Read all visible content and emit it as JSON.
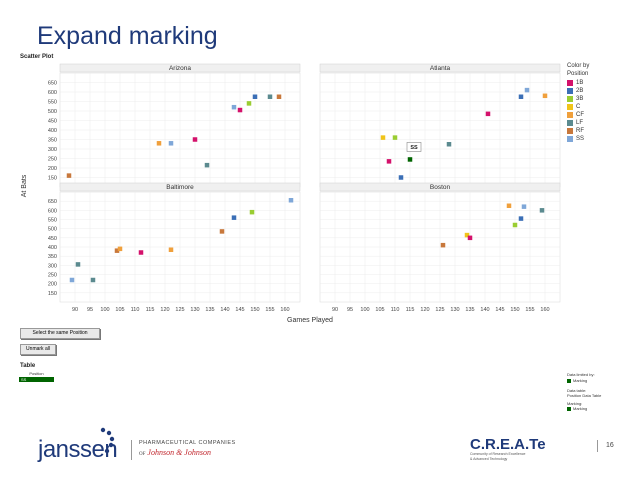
{
  "slide": {
    "title": "Expand marking",
    "page_number": "16"
  },
  "chart_data": {
    "type": "scatter",
    "title": "Scatter Plot",
    "xlabel": "Games Played",
    "ylabel": "At Bats",
    "xlim": [
      85,
      165
    ],
    "ylim": [
      100,
      700
    ],
    "xticks": [
      90,
      95,
      100,
      105,
      110,
      115,
      120,
      125,
      130,
      135,
      140,
      145,
      150,
      155,
      160
    ],
    "yticks": [
      150,
      200,
      250,
      300,
      350,
      400,
      450,
      500,
      550,
      600,
      650
    ],
    "legend": {
      "title": "Color by Position",
      "placement": "right",
      "items": [
        {
          "label": "1B",
          "color": "#d4116b"
        },
        {
          "label": "2B",
          "color": "#3b6fb6"
        },
        {
          "label": "3B",
          "color": "#9acd32"
        },
        {
          "label": "C",
          "color": "#f0c419"
        },
        {
          "label": "CF",
          "color": "#f0a03c"
        },
        {
          "label": "LF",
          "color": "#5b8a8f"
        },
        {
          "label": "RF",
          "color": "#c8783c"
        },
        {
          "label": "SS",
          "color": "#7fa7d8"
        }
      ]
    },
    "panels": [
      {
        "name": "Arizona",
        "points": [
          {
            "x": 88,
            "y": 160,
            "pos": "RF"
          },
          {
            "x": 118,
            "y": 330,
            "pos": "CF"
          },
          {
            "x": 122,
            "y": 330,
            "pos": "SS"
          },
          {
            "x": 130,
            "y": 350,
            "pos": "1B"
          },
          {
            "x": 134,
            "y": 215,
            "pos": "LF"
          },
          {
            "x": 143,
            "y": 520,
            "pos": "SS"
          },
          {
            "x": 145,
            "y": 505,
            "pos": "1B"
          },
          {
            "x": 148,
            "y": 540,
            "pos": "3B"
          },
          {
            "x": 150,
            "y": 575,
            "pos": "2B"
          },
          {
            "x": 155,
            "y": 575,
            "pos": "LF"
          },
          {
            "x": 158,
            "y": 575,
            "pos": "RF"
          }
        ]
      },
      {
        "name": "Atlanta",
        "points": [
          {
            "x": 106,
            "y": 360,
            "pos": "C"
          },
          {
            "x": 108,
            "y": 235,
            "pos": "1B"
          },
          {
            "x": 110,
            "y": 360,
            "pos": "3B"
          },
          {
            "x": 112,
            "y": 150,
            "pos": "2B"
          },
          {
            "x": 115,
            "y": 245,
            "pos": "SS",
            "marked": true
          },
          {
            "x": 128,
            "y": 325,
            "pos": "LF"
          },
          {
            "x": 141,
            "y": 485,
            "pos": "1B"
          },
          {
            "x": 152,
            "y": 575,
            "pos": "2B"
          },
          {
            "x": 154,
            "y": 610,
            "pos": "SS"
          },
          {
            "x": 160,
            "y": 580,
            "pos": "CF"
          }
        ]
      },
      {
        "name": "Baltimore",
        "points": [
          {
            "x": 89,
            "y": 220,
            "pos": "SS"
          },
          {
            "x": 91,
            "y": 305,
            "pos": "LF"
          },
          {
            "x": 96,
            "y": 220,
            "pos": "LF"
          },
          {
            "x": 104,
            "y": 380,
            "pos": "RF"
          },
          {
            "x": 105,
            "y": 390,
            "pos": "CF"
          },
          {
            "x": 112,
            "y": 370,
            "pos": "1B"
          },
          {
            "x": 122,
            "y": 385,
            "pos": "CF"
          },
          {
            "x": 139,
            "y": 485,
            "pos": "RF"
          },
          {
            "x": 143,
            "y": 560,
            "pos": "2B"
          },
          {
            "x": 149,
            "y": 590,
            "pos": "3B"
          },
          {
            "x": 162,
            "y": 655,
            "pos": "SS"
          }
        ]
      },
      {
        "name": "Boston",
        "points": [
          {
            "x": 126,
            "y": 410,
            "pos": "RF"
          },
          {
            "x": 134,
            "y": 465,
            "pos": "C"
          },
          {
            "x": 135,
            "y": 450,
            "pos": "1B"
          },
          {
            "x": 148,
            "y": 625,
            "pos": "CF"
          },
          {
            "x": 150,
            "y": 520,
            "pos": "3B"
          },
          {
            "x": 152,
            "y": 555,
            "pos": "2B"
          },
          {
            "x": 153,
            "y": 620,
            "pos": "SS"
          },
          {
            "x": 159,
            "y": 600,
            "pos": "LF"
          }
        ]
      }
    ],
    "marked_tooltip": "SS"
  },
  "controls": {
    "select_same_position": "Select the same Position",
    "unmark_all": "Unmark all"
  },
  "table": {
    "label": "Table",
    "header": "Position",
    "row_value": "SS"
  },
  "right_panel": {
    "data_limited_by": "Data limited by:",
    "marking": "Marking",
    "data_table_label": "Data table:",
    "data_table_value": "Position Data Table",
    "marking_label": "Marking:",
    "marking_value": "Marking"
  },
  "footer": {
    "janssen": "janssen",
    "pharma": "PHARMACEUTICAL COMPANIES",
    "jj_prefix": "OF",
    "jj": "Johnson & Johnson",
    "create": "C.R.E.A.Te",
    "create_sub_1": "Community of Research Excellence",
    "create_sub_2": "& Advanced Technology"
  },
  "colors": {
    "marked": "#006400",
    "title": "#1f3a7a"
  }
}
